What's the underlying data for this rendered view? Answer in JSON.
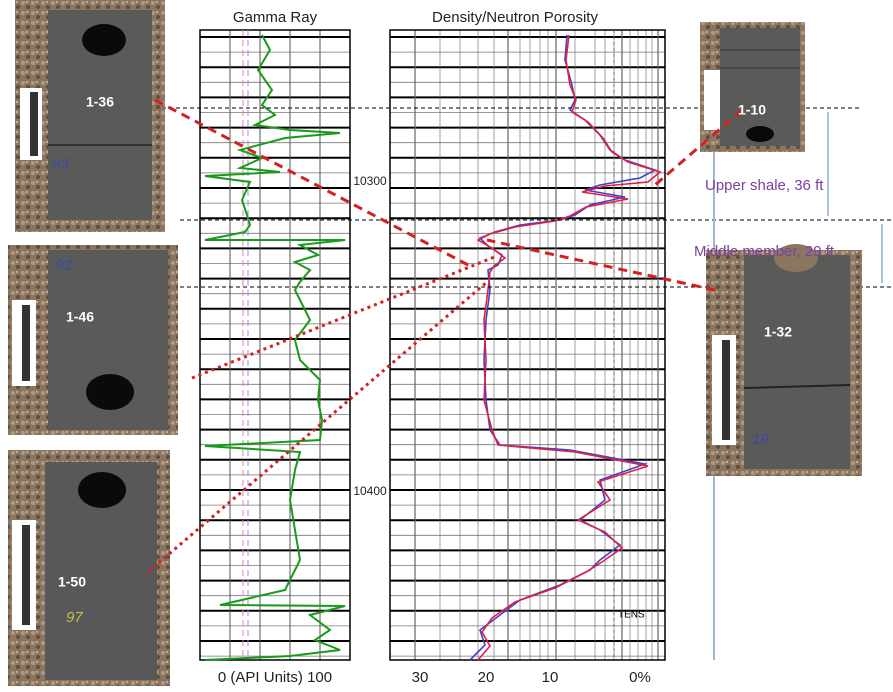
{
  "tracks": {
    "gamma": {
      "title": "Gamma Ray",
      "scale": "0 (API Units) 100"
    },
    "porosity": {
      "title": "Density/Neutron Porosity",
      "scale_labels": [
        "30",
        "20",
        "10",
        "0%"
      ],
      "curve_label": "TENS"
    }
  },
  "depths": [
    "10300",
    "10400"
  ],
  "intervals": [
    {
      "label": "Upper shale, 36 ft"
    },
    {
      "label": "Middle member, 29 ft"
    }
  ],
  "cores": [
    {
      "label": "1-36",
      "note": "93"
    },
    {
      "label": "1-46",
      "note": "93"
    },
    {
      "label": "1-50",
      "note": "97"
    },
    {
      "label": "1-10"
    },
    {
      "label": "1-32",
      "note": "19"
    }
  ]
}
